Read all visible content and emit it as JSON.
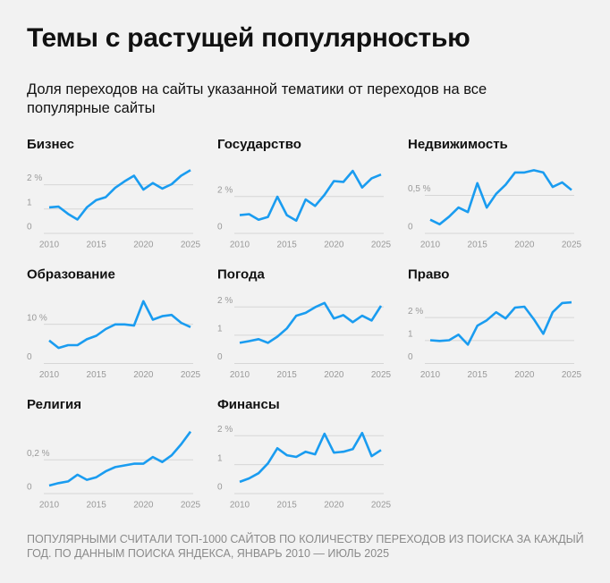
{
  "title": "Темы с растущей популярностью",
  "subtitle": "Доля переходов на сайты указанной тематики от переходов на все популярные сайты",
  "note": "ПОПУЛЯРНЫМИ СЧИТАЛИ ТОП-1000 САЙТОВ ПО КОЛИЧЕСТВУ ПЕРЕХОДОВ ИЗ ПОИСКА ЗА КАЖДЫЙ ГОД. ПО ДАННЫМ ПОИСКА ЯНДЕКСА, ЯНВАРЬ 2010 — ИЮЛЬ 2025",
  "chart_data": [
    {
      "type": "line",
      "title": "Бизнес",
      "color": "#1a9cf0",
      "grid": true,
      "x": [
        2010,
        2011,
        2012,
        2013,
        2014,
        2015,
        2016,
        2017,
        2018,
        2019,
        2020,
        2021,
        2022,
        2023,
        2024,
        2025
      ],
      "values": [
        0.85,
        0.88,
        0.58,
        0.35,
        0.85,
        1.15,
        1.27,
        1.65,
        1.92,
        2.15,
        1.58,
        1.85,
        1.62,
        1.8,
        2.15,
        2.38
      ],
      "xlim": [
        2010,
        2025
      ],
      "xticks": [
        2010,
        2015,
        2020,
        2025
      ],
      "ylim": [
        0,
        2.5
      ],
      "yticks": [
        0,
        1,
        {
          "value": 2,
          "label": "2 %"
        }
      ]
    },
    {
      "type": "line",
      "title": "Государство",
      "color": "#1a9cf0",
      "grid": true,
      "x": [
        2010,
        2011,
        2012,
        2013,
        2014,
        2015,
        2016,
        2017,
        2018,
        2019,
        2020,
        2021,
        2022,
        2023,
        2024,
        2025
      ],
      "values": [
        0.7,
        0.75,
        0.45,
        0.6,
        1.7,
        0.7,
        0.4,
        1.55,
        1.2,
        1.8,
        2.55,
        2.5,
        3.1,
        2.2,
        2.7,
        2.9
      ],
      "xlim": [
        2010,
        2025
      ],
      "xticks": [
        2010,
        2015,
        2020,
        2025
      ],
      "ylim": [
        0,
        3.3
      ],
      "yticks": [
        0,
        {
          "value": 2,
          "label": "2 %"
        }
      ]
    },
    {
      "type": "line",
      "title": "Недвижимость",
      "color": "#1a9cf0",
      "grid": true,
      "x": [
        2010,
        2011,
        2012,
        2013,
        2014,
        2015,
        2016,
        2017,
        2018,
        2019,
        2020,
        2021,
        2022,
        2023,
        2024,
        2025
      ],
      "values": [
        0.11,
        0.05,
        0.15,
        0.27,
        0.21,
        0.59,
        0.27,
        0.45,
        0.57,
        0.73,
        0.73,
        0.76,
        0.73,
        0.54,
        0.6,
        0.5
      ],
      "xlim": [
        2010,
        2025
      ],
      "xticks": [
        2010,
        2015,
        2020,
        2025
      ],
      "ylim": [
        0,
        0.8
      ],
      "yticks": [
        0,
        {
          "value": 0.5,
          "label": "0,5 %"
        }
      ]
    },
    {
      "type": "line",
      "title": "Образование",
      "color": "#1a9cf0",
      "grid": true,
      "x": [
        2010,
        2011,
        2012,
        2013,
        2014,
        2015,
        2016,
        2017,
        2018,
        2019,
        2020,
        2021,
        2022,
        2023,
        2024,
        2025
      ],
      "values": [
        4.5,
        2.6,
        3.3,
        3.3,
        4.8,
        5.7,
        7.4,
        8.6,
        8.6,
        8.3,
        14.5,
        9.8,
        10.7,
        11,
        9,
        7.9
      ],
      "xlim": [
        2010,
        2025
      ],
      "xticks": [
        2010,
        2015,
        2020,
        2025
      ],
      "ylim": [
        0,
        15.5
      ],
      "yticks": [
        0,
        {
          "value": 10,
          "label": "10 %"
        }
      ]
    },
    {
      "type": "line",
      "title": "Погода",
      "color": "#1a9cf0",
      "grid": true,
      "x": [
        2010,
        2011,
        2012,
        2013,
        2014,
        2015,
        2016,
        2017,
        2018,
        2019,
        2020,
        2021,
        2022,
        2023,
        2024,
        2025
      ],
      "values": [
        0.54,
        0.6,
        0.67,
        0.54,
        0.76,
        1.05,
        1.5,
        1.6,
        1.8,
        1.95,
        1.4,
        1.52,
        1.27,
        1.5,
        1.33,
        1.85
      ],
      "xlim": [
        2010,
        2025
      ],
      "xticks": [
        2010,
        2015,
        2020,
        2025
      ],
      "ylim": [
        0,
        2.15
      ],
      "yticks": [
        0,
        1,
        {
          "value": 2,
          "label": "2 %"
        }
      ]
    },
    {
      "type": "line",
      "title": "Право",
      "color": "#1a9cf0",
      "grid": true,
      "x": [
        2010,
        2011,
        2012,
        2013,
        2014,
        2015,
        2016,
        2017,
        2018,
        2019,
        2020,
        2021,
        2022,
        2023,
        2024,
        2025
      ],
      "values": [
        0.78,
        0.75,
        0.78,
        1.02,
        0.59,
        1.41,
        1.65,
        2.0,
        1.73,
        2.2,
        2.24,
        1.69,
        1.06,
        2.0,
        2.4,
        2.43
      ],
      "xlim": [
        2010,
        2025
      ],
      "xticks": [
        2010,
        2015,
        2020,
        2025
      ],
      "ylim": [
        0,
        2.65
      ],
      "yticks": [
        0,
        1,
        {
          "value": 2,
          "label": "2 %"
        }
      ]
    },
    {
      "type": "line",
      "title": "Религия",
      "color": "#1a9cf0",
      "grid": true,
      "x": [
        2010,
        2011,
        2012,
        2013,
        2014,
        2015,
        2016,
        2017,
        2018,
        2019,
        2020,
        2021,
        2022,
        2023,
        2024,
        2025
      ],
      "values": [
        0.016,
        0.03,
        0.04,
        0.08,
        0.05,
        0.065,
        0.1,
        0.125,
        0.135,
        0.145,
        0.145,
        0.185,
        0.155,
        0.195,
        0.26,
        0.335
      ],
      "xlim": [
        2010,
        2025
      ],
      "xticks": [
        2010,
        2015,
        2020,
        2025
      ],
      "ylim": [
        0,
        0.36
      ],
      "yticks": [
        0,
        {
          "value": 0.2,
          "label": "0,2 %"
        }
      ]
    },
    {
      "type": "line",
      "title": "Финансы",
      "color": "#1a9cf0",
      "grid": true,
      "x": [
        2010,
        2011,
        2012,
        2013,
        2014,
        2015,
        2016,
        2017,
        2018,
        2019,
        2020,
        2021,
        2022,
        2023,
        2024,
        2025
      ],
      "values": [
        0.22,
        0.34,
        0.52,
        0.86,
        1.38,
        1.14,
        1.08,
        1.26,
        1.17,
        1.88,
        1.23,
        1.26,
        1.35,
        1.91,
        1.11,
        1.32
      ],
      "xlim": [
        2010,
        2025
      ],
      "xticks": [
        2010,
        2015,
        2020,
        2025
      ],
      "ylim": [
        0,
        2.1
      ],
      "yticks": [
        0,
        1,
        {
          "value": 2,
          "label": "2 %"
        }
      ]
    }
  ]
}
